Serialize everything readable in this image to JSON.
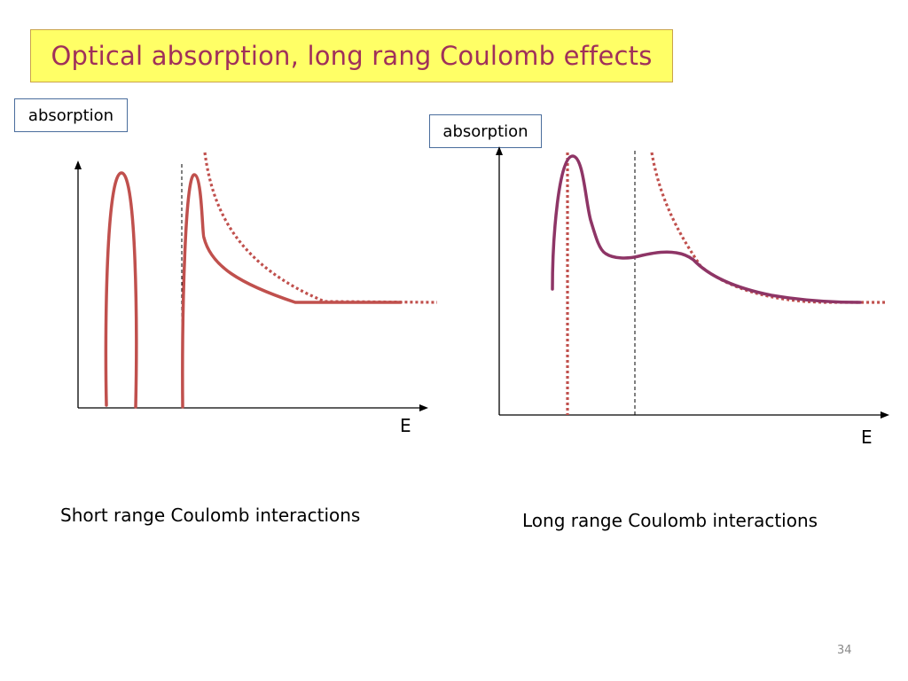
{
  "title": "Optical absorption,  long rang Coulomb effects",
  "left_panel": {
    "ylabel": "absorption",
    "xlabel": "E",
    "caption": "Short range Coulomb interactions"
  },
  "right_panel": {
    "ylabel": "absorption",
    "xlabel": "E",
    "caption": "Long range Coulomb interactions"
  },
  "page_number": "34",
  "colors": {
    "title_text": "#a0305a",
    "title_background": "#ffff66",
    "short_range_curve": "#c0504d",
    "long_range_curve": "#8e3566",
    "reference_dotted": "#c0504d",
    "axis": "#000000"
  }
}
